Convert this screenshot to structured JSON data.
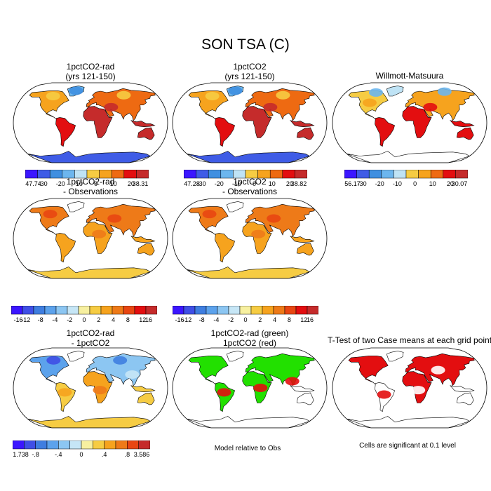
{
  "title": "SON TSA (C)",
  "panels": [
    {
      "title_line1": "1pctCO2-rad",
      "title_line2": "(yrs 121-150)",
      "style": "abs",
      "colorbar": {
        "colors": [
          "#3b16ff",
          "#3f5ce6",
          "#3f8fe0",
          "#6cb6ee",
          "#bfe3f5",
          "#f6cc43",
          "#f6a31e",
          "#ee6a12",
          "#e30e10",
          "#c52b2b"
        ],
        "labels": [
          "-47.74",
          "-30",
          "-20",
          "-10",
          "0",
          "10",
          "20",
          "38.31"
        ]
      }
    },
    {
      "title_line1": "1pctCO2",
      "title_line2": "(yrs 121-150)",
      "style": "abs",
      "colorbar": {
        "colors": [
          "#3b16ff",
          "#3f5ce6",
          "#3f8fe0",
          "#6cb6ee",
          "#bfe3f5",
          "#f6cc43",
          "#f6a31e",
          "#ee6a12",
          "#e30e10",
          "#c52b2b"
        ],
        "labels": [
          "-47.28",
          "-30",
          "-20",
          "-10",
          "0",
          "10",
          "20",
          "38.82"
        ]
      }
    },
    {
      "title_line1": "Willmott-Matsuura",
      "title_line2": "",
      "style": "obs",
      "colorbar": {
        "colors": [
          "#3b16ff",
          "#3f5ce6",
          "#3f8fe0",
          "#6cb6ee",
          "#bfe3f5",
          "#f6cc43",
          "#f6a31e",
          "#ee6a12",
          "#e30e10",
          "#c52b2b"
        ],
        "labels": [
          "-56.17",
          "-30",
          "-20",
          "-10",
          "0",
          "10",
          "20",
          "30.07"
        ]
      }
    },
    {
      "title_line1": "1pctCO2-rad",
      "title_line2": "- Observations",
      "style": "diff",
      "colorbar": {
        "colors": [
          "#3b16ff",
          "#3f4fe6",
          "#3f7ee0",
          "#5ca2ec",
          "#8cc6f2",
          "#c6e6f6",
          "#f7f0a0",
          "#f6cc43",
          "#f6a31e",
          "#ee7a18",
          "#e84612",
          "#e30e10",
          "#c52b2b"
        ],
        "labels": [
          "-16",
          "-12",
          "-8",
          "-4",
          "-2",
          "0",
          "2",
          "4",
          "8",
          "12",
          "16"
        ]
      }
    },
    {
      "title_line1": "1pctCO2",
      "title_line2": "- Observations",
      "style": "diff",
      "colorbar": {
        "colors": [
          "#3b16ff",
          "#3f4fe6",
          "#3f7ee0",
          "#5ca2ec",
          "#8cc6f2",
          "#c6e6f6",
          "#f7f0a0",
          "#f6cc43",
          "#f6a31e",
          "#ee7a18",
          "#e84612",
          "#e30e10",
          "#c52b2b"
        ],
        "labels": [
          "-16",
          "-12",
          "-8",
          "-4",
          "-2",
          "0",
          "2",
          "4",
          "8",
          "12",
          "16"
        ]
      }
    },
    {
      "title_line1": "1pctCO2-rad",
      "title_line2": "- 1pctCO2",
      "style": "rad",
      "colorbar": {
        "colors": [
          "#3b16ff",
          "#3f4fe6",
          "#3f7ee0",
          "#5ca2ec",
          "#8cc6f2",
          "#c6e6f6",
          "#f7f0a0",
          "#f6cc43",
          "#f6a31e",
          "#ee7a18",
          "#e84612",
          "#c52b2b"
        ],
        "labels": [
          "-1.738",
          "-.8",
          "-.4",
          "0",
          ".4",
          ".8",
          "3.586"
        ]
      }
    },
    {
      "title_line1": "1pctCO2-rad (green)",
      "title_line2": "1pctCO2 (red)",
      "style": "green",
      "note": "Model relative to Obs"
    },
    {
      "title_line1": "T-Test of two Case means at each grid point",
      "title_line2": "",
      "style": "ttest",
      "note": "Cells are significant at 0.1 level"
    }
  ]
}
